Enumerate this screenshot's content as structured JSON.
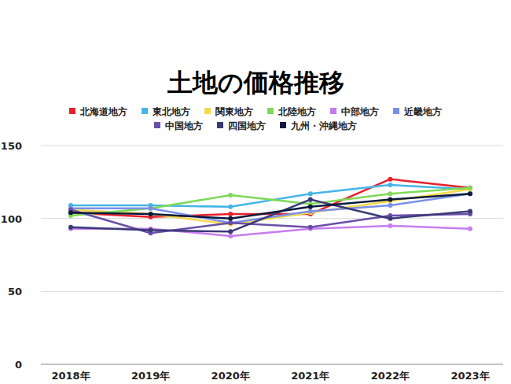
{
  "chart_data": {
    "type": "line",
    "title": "土地の価格推移",
    "categories": [
      "2018年",
      "2019年",
      "2020年",
      "2021年",
      "2022年",
      "2023年"
    ],
    "series": [
      {
        "name": "北海道地方",
        "color": "#e8202a",
        "values": [
          104,
          101,
          103,
          103,
          127,
          121
        ]
      },
      {
        "name": "東北地方",
        "color": "#44b5e8",
        "values": [
          109,
          109,
          108,
          117,
          123,
          120
        ]
      },
      {
        "name": "関東地方",
        "color": "#f5d949",
        "values": [
          106,
          103,
          96,
          104,
          112,
          120
        ]
      },
      {
        "name": "北陸地方",
        "color": "#7ed957",
        "values": [
          102,
          107,
          116,
          110,
          117,
          121
        ]
      },
      {
        "name": "中部地方",
        "color": "#c77dee",
        "values": [
          93,
          93,
          88,
          93,
          95,
          93
        ]
      },
      {
        "name": "近畿地方",
        "color": "#7a8fe8",
        "values": [
          107,
          107,
          97,
          105,
          109,
          117
        ]
      },
      {
        "name": "中国地方",
        "color": "#6a4fa8",
        "values": [
          106,
          90,
          97,
          94,
          102,
          103
        ]
      },
      {
        "name": "四国地方",
        "color": "#3b3a78",
        "values": [
          94,
          92,
          91,
          113,
          100,
          105
        ]
      },
      {
        "name": "九州・沖縄地方",
        "color": "#0b1a3d",
        "values": [
          104,
          103,
          100,
          108,
          113,
          117
        ]
      }
    ],
    "ylim": [
      0,
      150
    ],
    "yticks": [
      0,
      50,
      100,
      150
    ],
    "grid": true,
    "legend": "top",
    "marker": "circle"
  }
}
